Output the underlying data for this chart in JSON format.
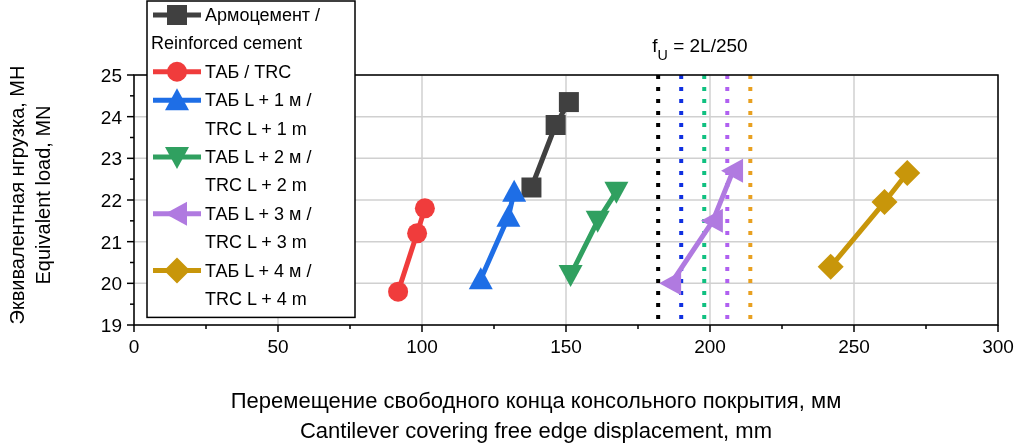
{
  "chart_data": {
    "type": "line",
    "xlabel": "Перемещение свободного конца консольного покрытия, мм\nCantilever covering free edge displacement, mm",
    "ylabel": "Эквивалентная нгрузка, МН\nEquivalent load, MN",
    "xlim": [
      0,
      300
    ],
    "xticks": [
      0,
      {
        "value": 25,
        "label": null
      },
      50,
      {
        "value": 75,
        "label": null
      },
      100,
      {
        "value": 125,
        "label": null
      },
      150,
      {
        "value": 175,
        "label": null
      },
      200,
      {
        "value": 225,
        "label": null
      },
      250,
      {
        "value": 275,
        "label": null
      },
      300
    ],
    "ylim": [
      19,
      25
    ],
    "yticks": [
      19,
      {
        "value": 19.5,
        "label": null
      },
      20,
      {
        "value": 20.5,
        "label": null
      },
      21,
      {
        "value": 21.5,
        "label": null
      },
      22,
      {
        "value": 22.5,
        "label": null
      },
      23,
      {
        "value": 23.5,
        "label": null
      },
      24,
      {
        "value": 24.5,
        "label": null
      },
      25
    ],
    "grid": true,
    "legend": "top left",
    "line_style": "solid",
    "series": [
      {
        "name": "Армоцемент / Reinforced cement",
        "color": "#404040",
        "marker": "square",
        "x": [
          138,
          146.4,
          151
        ],
        "values": [
          22.3,
          23.8,
          24.35
        ]
      },
      {
        "name": "ТАБ / TRC",
        "color": "#f03c3c",
        "marker": "circle",
        "x": [
          91.7,
          98.3,
          101
        ],
        "values": [
          19.8,
          21.2,
          21.8
        ]
      },
      {
        "name": "ТАБ L + 1 м / TRC L + 1 m",
        "color": "#1e6ee6",
        "marker": "triangle",
        "x": [
          120.4,
          130,
          132
        ],
        "values": [
          20.1,
          21.6,
          22.2
        ]
      },
      {
        "name": "ТАБ L + 2 м / TRC L + 2 m",
        "color": "#30a060",
        "marker": "triangle-down",
        "x": [
          151.6,
          161,
          167.5
        ],
        "values": [
          20.2,
          21.5,
          22.2
        ]
      },
      {
        "name": "ТАБ L + 3 м / TRC L + 3 m",
        "color": "#b07ae0",
        "marker": "triangle-left",
        "x": [
          186.5,
          201,
          208
        ],
        "values": [
          20,
          21.5,
          22.7
        ]
      },
      {
        "name": "ТАБ L + 4 м / TRC L + 4 m",
        "color": "#c8960a",
        "marker": "diamond",
        "x": [
          241.9,
          260.6,
          268.5
        ],
        "values": [
          20.4,
          21.95,
          22.65
        ]
      }
    ],
    "ref_lines": [
      {
        "axis": "x",
        "value": 182,
        "color": "#000000",
        "line_style": "dotted"
      },
      {
        "axis": "x",
        "value": 190,
        "color": "#1030e0",
        "line_style": "dotted"
      },
      {
        "axis": "x",
        "value": 198,
        "color": "#10c080",
        "line_style": "dotted"
      },
      {
        "axis": "x",
        "value": 206,
        "color": "#b060f0",
        "line_style": "dotted"
      },
      {
        "axis": "x",
        "value": 214,
        "color": "#e8a020",
        "line_style": "dotted"
      }
    ],
    "annotations": [
      "f$_{U}$ = 2L/250"
    ]
  }
}
